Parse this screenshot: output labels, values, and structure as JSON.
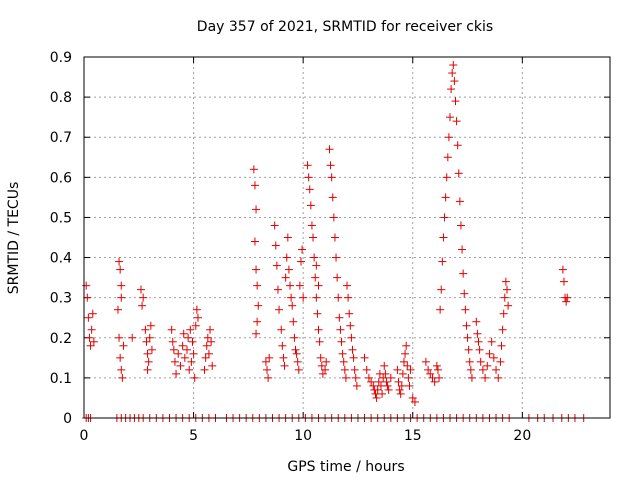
{
  "chart_data": {
    "type": "scatter",
    "title": "Day 357 of 2021, SRMTID for receiver ckis",
    "xlabel": "GPS time / hours",
    "ylabel": "SRMTID / TECUs",
    "xlim": [
      0,
      24
    ],
    "ylim": [
      0,
      0.9
    ],
    "x_ticks": [
      0,
      5,
      10,
      15,
      20
    ],
    "y_ticks": [
      0,
      0.1,
      0.2,
      0.3,
      0.4,
      0.5,
      0.6,
      0.7,
      0.8,
      0.9
    ],
    "x_tick_labels": [
      "0",
      "5",
      "10",
      "15",
      "20"
    ],
    "y_tick_labels": [
      "0",
      "0.1",
      "0.2",
      "0.3",
      "0.4",
      "0.5",
      "0.6",
      "0.7",
      "0.8",
      "0.9"
    ],
    "grid": true,
    "marker": "+",
    "series": [
      {
        "name": "SRMTID",
        "color": "#e00000",
        "points": [
          [
            0.1,
            0.33
          ],
          [
            0.15,
            0.3
          ],
          [
            0.2,
            0.25
          ],
          [
            0.25,
            0.2
          ],
          [
            0.3,
            0.18
          ],
          [
            0.35,
            0.22
          ],
          [
            0.4,
            0.26
          ],
          [
            0.45,
            0.19
          ],
          [
            1.6,
            0.39
          ],
          [
            1.65,
            0.37
          ],
          [
            1.7,
            0.33
          ],
          [
            1.6,
            0.2
          ],
          [
            1.65,
            0.15
          ],
          [
            1.7,
            0.12
          ],
          [
            1.75,
            0.1
          ],
          [
            1.8,
            0.18
          ],
          [
            1.55,
            0.27
          ],
          [
            1.7,
            0.3
          ],
          [
            2.2,
            0.2
          ],
          [
            2.6,
            0.32
          ],
          [
            2.65,
            0.28
          ],
          [
            2.7,
            0.3
          ],
          [
            2.8,
            0.22
          ],
          [
            2.85,
            0.19
          ],
          [
            2.9,
            0.16
          ],
          [
            2.95,
            0.14
          ],
          [
            3.0,
            0.2
          ],
          [
            3.05,
            0.23
          ],
          [
            2.9,
            0.12
          ],
          [
            3.1,
            0.17
          ],
          [
            4.0,
            0.22
          ],
          [
            4.05,
            0.19
          ],
          [
            4.1,
            0.17
          ],
          [
            4.15,
            0.14
          ],
          [
            4.2,
            0.11
          ],
          [
            4.3,
            0.16
          ],
          [
            4.4,
            0.13
          ],
          [
            4.5,
            0.18
          ],
          [
            4.55,
            0.21
          ],
          [
            4.6,
            0.15
          ],
          [
            4.7,
            0.17
          ],
          [
            4.75,
            0.2
          ],
          [
            4.8,
            0.12
          ],
          [
            4.85,
            0.22
          ],
          [
            4.9,
            0.14
          ],
          [
            4.95,
            0.19
          ],
          [
            5.0,
            0.16
          ],
          [
            5.05,
            0.1
          ],
          [
            5.1,
            0.23
          ],
          [
            5.15,
            0.27
          ],
          [
            5.2,
            0.25
          ],
          [
            5.5,
            0.12
          ],
          [
            5.55,
            0.15
          ],
          [
            5.6,
            0.18
          ],
          [
            5.65,
            0.2
          ],
          [
            5.7,
            0.16
          ],
          [
            5.75,
            0.22
          ],
          [
            5.8,
            0.19
          ],
          [
            5.85,
            0.13
          ],
          [
            7.75,
            0.62
          ],
          [
            7.8,
            0.58
          ],
          [
            7.85,
            0.52
          ],
          [
            7.8,
            0.44
          ],
          [
            7.85,
            0.37
          ],
          [
            7.9,
            0.33
          ],
          [
            7.95,
            0.28
          ],
          [
            7.9,
            0.24
          ],
          [
            7.85,
            0.21
          ],
          [
            8.3,
            0.14
          ],
          [
            8.35,
            0.12
          ],
          [
            8.4,
            0.1
          ],
          [
            8.45,
            0.15
          ],
          [
            8.7,
            0.48
          ],
          [
            8.75,
            0.43
          ],
          [
            8.8,
            0.38
          ],
          [
            8.85,
            0.32
          ],
          [
            8.9,
            0.27
          ],
          [
            9.0,
            0.22
          ],
          [
            9.05,
            0.18
          ],
          [
            9.1,
            0.15
          ],
          [
            9.15,
            0.13
          ],
          [
            9.2,
            0.35
          ],
          [
            9.25,
            0.4
          ],
          [
            9.3,
            0.45
          ],
          [
            9.35,
            0.37
          ],
          [
            9.4,
            0.33
          ],
          [
            9.45,
            0.3
          ],
          [
            9.5,
            0.28
          ],
          [
            9.55,
            0.24
          ],
          [
            9.6,
            0.2
          ],
          [
            9.65,
            0.17
          ],
          [
            9.7,
            0.16
          ],
          [
            9.75,
            0.14
          ],
          [
            9.8,
            0.12
          ],
          [
            9.85,
            0.33
          ],
          [
            9.9,
            0.39
          ],
          [
            9.95,
            0.42
          ],
          [
            10.0,
            0.3
          ],
          [
            10.2,
            0.63
          ],
          [
            10.25,
            0.6
          ],
          [
            10.3,
            0.57
          ],
          [
            10.35,
            0.53
          ],
          [
            10.4,
            0.48
          ],
          [
            10.45,
            0.45
          ],
          [
            10.5,
            0.4
          ],
          [
            10.55,
            0.35
          ],
          [
            10.6,
            0.3
          ],
          [
            10.65,
            0.26
          ],
          [
            10.7,
            0.22
          ],
          [
            10.75,
            0.19
          ],
          [
            10.8,
            0.15
          ],
          [
            10.85,
            0.13
          ],
          [
            10.9,
            0.11
          ],
          [
            11.0,
            0.12
          ],
          [
            11.05,
            0.14
          ],
          [
            10.6,
            0.38
          ],
          [
            10.7,
            0.33
          ],
          [
            11.2,
            0.67
          ],
          [
            11.25,
            0.63
          ],
          [
            11.3,
            0.6
          ],
          [
            11.35,
            0.55
          ],
          [
            11.4,
            0.5
          ],
          [
            11.45,
            0.45
          ],
          [
            11.5,
            0.4
          ],
          [
            11.55,
            0.35
          ],
          [
            11.6,
            0.3
          ],
          [
            11.65,
            0.25
          ],
          [
            11.7,
            0.22
          ],
          [
            11.75,
            0.19
          ],
          [
            11.8,
            0.16
          ],
          [
            11.85,
            0.14
          ],
          [
            11.9,
            0.12
          ],
          [
            11.95,
            0.1
          ],
          [
            12.0,
            0.33
          ],
          [
            12.05,
            0.3
          ],
          [
            12.1,
            0.26
          ],
          [
            12.15,
            0.23
          ],
          [
            12.2,
            0.2
          ],
          [
            12.25,
            0.17
          ],
          [
            12.3,
            0.15
          ],
          [
            12.35,
            0.12
          ],
          [
            12.4,
            0.1
          ],
          [
            12.45,
            0.08
          ],
          [
            12.8,
            0.15
          ],
          [
            12.9,
            0.12
          ],
          [
            13.0,
            0.1
          ],
          [
            13.1,
            0.09
          ],
          [
            13.2,
            0.08
          ],
          [
            13.25,
            0.07
          ],
          [
            13.3,
            0.06
          ],
          [
            13.35,
            0.05
          ],
          [
            13.4,
            0.07
          ],
          [
            13.45,
            0.09
          ],
          [
            13.5,
            0.11
          ],
          [
            13.55,
            0.08
          ],
          [
            13.6,
            0.06
          ],
          [
            13.65,
            0.1
          ],
          [
            13.7,
            0.13
          ],
          [
            13.75,
            0.11
          ],
          [
            13.8,
            0.09
          ],
          [
            13.85,
            0.08
          ],
          [
            13.9,
            0.07
          ],
          [
            14.0,
            0.1
          ],
          [
            14.3,
            0.12
          ],
          [
            14.35,
            0.09
          ],
          [
            14.4,
            0.07
          ],
          [
            14.45,
            0.06
          ],
          [
            14.5,
            0.08
          ],
          [
            14.55,
            0.11
          ],
          [
            14.6,
            0.14
          ],
          [
            14.65,
            0.16
          ],
          [
            14.7,
            0.18
          ],
          [
            14.75,
            0.13
          ],
          [
            14.8,
            0.1
          ],
          [
            14.85,
            0.08
          ],
          [
            14.9,
            0.12
          ],
          [
            15.0,
            0.05
          ],
          [
            15.1,
            0.04
          ],
          [
            15.6,
            0.14
          ],
          [
            15.7,
            0.12
          ],
          [
            15.8,
            0.11
          ],
          [
            15.9,
            0.1
          ],
          [
            16.0,
            0.09
          ],
          [
            16.1,
            0.13
          ],
          [
            16.15,
            0.12
          ],
          [
            16.2,
            0.1
          ],
          [
            16.25,
            0.27
          ],
          [
            16.3,
            0.32
          ],
          [
            16.35,
            0.39
          ],
          [
            16.4,
            0.45
          ],
          [
            16.45,
            0.5
          ],
          [
            16.5,
            0.55
          ],
          [
            16.55,
            0.6
          ],
          [
            16.6,
            0.65
          ],
          [
            16.65,
            0.7
          ],
          [
            16.7,
            0.75
          ],
          [
            16.75,
            0.82
          ],
          [
            16.8,
            0.86
          ],
          [
            16.85,
            0.88
          ],
          [
            16.9,
            0.84
          ],
          [
            16.95,
            0.79
          ],
          [
            17.0,
            0.74
          ],
          [
            17.05,
            0.68
          ],
          [
            17.1,
            0.61
          ],
          [
            17.15,
            0.54
          ],
          [
            17.2,
            0.48
          ],
          [
            17.25,
            0.42
          ],
          [
            17.3,
            0.36
          ],
          [
            17.35,
            0.31
          ],
          [
            17.4,
            0.27
          ],
          [
            17.45,
            0.23
          ],
          [
            17.5,
            0.2
          ],
          [
            17.55,
            0.17
          ],
          [
            17.6,
            0.14
          ],
          [
            17.65,
            0.12
          ],
          [
            17.7,
            0.1
          ],
          [
            17.9,
            0.24
          ],
          [
            17.95,
            0.21
          ],
          [
            18.0,
            0.19
          ],
          [
            18.05,
            0.17
          ],
          [
            18.1,
            0.14
          ],
          [
            18.2,
            0.12
          ],
          [
            18.3,
            0.1
          ],
          [
            18.4,
            0.13
          ],
          [
            18.5,
            0.16
          ],
          [
            18.6,
            0.19
          ],
          [
            18.7,
            0.15
          ],
          [
            18.8,
            0.12
          ],
          [
            18.9,
            0.1
          ],
          [
            19.0,
            0.14
          ],
          [
            19.05,
            0.18
          ],
          [
            19.1,
            0.22
          ],
          [
            19.15,
            0.26
          ],
          [
            19.2,
            0.3
          ],
          [
            19.25,
            0.34
          ],
          [
            19.3,
            0.32
          ],
          [
            19.35,
            0.28
          ],
          [
            21.85,
            0.37
          ],
          [
            21.9,
            0.34
          ],
          [
            21.95,
            0.3
          ],
          [
            22.0,
            0.29
          ],
          [
            22.05,
            0.3
          ]
        ],
        "zero_points_x": [
          0.1,
          0.2,
          0.3,
          1.5,
          1.7,
          1.9,
          2.1,
          2.3,
          2.5,
          2.7,
          3.0,
          3.3,
          3.6,
          3.9,
          4.2,
          4.5,
          4.8,
          5.1,
          5.4,
          5.7,
          6.0,
          6.5,
          6.8,
          7.1,
          7.4,
          7.7,
          8.0,
          8.3,
          8.6,
          8.9,
          9.2,
          9.5,
          9.8,
          10.1,
          10.4,
          10.7,
          11.0,
          11.3,
          11.6,
          11.9,
          12.2,
          12.5,
          12.8,
          13.1,
          13.4,
          13.7,
          14.0,
          14.3,
          14.6,
          14.9,
          15.2,
          15.5,
          15.8,
          16.1,
          16.4,
          16.7,
          17.0,
          17.3,
          17.6,
          17.9,
          18.2,
          18.5,
          18.8,
          19.1,
          19.4,
          20.3,
          20.7,
          21.0,
          21.4,
          21.8,
          22.1,
          22.4,
          22.8
        ]
      }
    ]
  }
}
